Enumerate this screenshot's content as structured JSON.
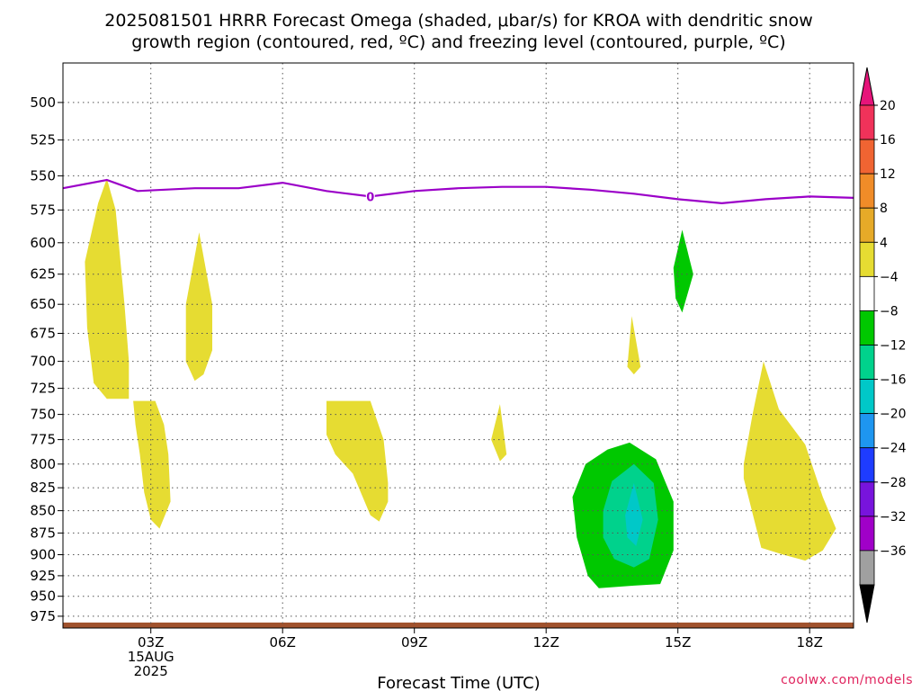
{
  "title_line1": "2025081501 HRRR Forecast Omega (shaded, μbar/s) for KROA with dendritic snow",
  "title_line2": "growth region (contoured, red, ºC) and freezing level (contoured, purple, ºC)",
  "credit": "coolwx.com/models",
  "chart_data": {
    "type": "filled-contour",
    "title": "2025081501 HRRR Forecast Omega (shaded, μbar/s) for KROA with dendritic snow growth region (contoured, red, ºC) and freezing level (contoured, purple, ºC)",
    "xlabel": "Forecast Time (UTC)",
    "ylabel": "",
    "xlim": [
      1,
      19
    ],
    "ylim": [
      990,
      475
    ],
    "y_scale": "log-pressure (inverted)",
    "grid": true,
    "x_ticks": [
      {
        "x": 3,
        "lines": [
          "03Z",
          "15AUG",
          "2025"
        ]
      },
      {
        "x": 6,
        "lines": [
          "06Z"
        ]
      },
      {
        "x": 9,
        "lines": [
          "09Z"
        ]
      },
      {
        "x": 12,
        "lines": [
          "12Z"
        ]
      },
      {
        "x": 15,
        "lines": [
          "15Z"
        ]
      },
      {
        "x": 18,
        "lines": [
          "18Z"
        ]
      }
    ],
    "y_ticks": [
      500,
      525,
      550,
      575,
      600,
      625,
      650,
      675,
      700,
      725,
      750,
      775,
      800,
      825,
      850,
      875,
      900,
      925,
      950,
      975
    ],
    "colorbar": {
      "labels": [
        "20",
        "16",
        "12",
        "8",
        "4",
        "−4",
        "−8",
        "−12",
        "−16",
        "−20",
        "−24",
        "−28",
        "−32",
        "−36"
      ],
      "bands": [
        "#f0325a",
        "#f06432",
        "#f08c28",
        "#e6aa28",
        "#e6dc32",
        "#ffffff",
        "#00c800",
        "#00d28c",
        "#00c8c8",
        "#1e96f0",
        "#1e3cff",
        "#7814dc",
        "#a000c8",
        "#a0a0a0"
      ],
      "top_arrow_color": "#e6147a",
      "bottom_arrow_color": "#000000"
    },
    "freezing_level": {
      "label": "0",
      "color": "#9b00c8",
      "points": [
        [
          1,
          559
        ],
        [
          2,
          553
        ],
        [
          2.7,
          561
        ],
        [
          4,
          559
        ],
        [
          5,
          559
        ],
        [
          6,
          555
        ],
        [
          7,
          561
        ],
        [
          8,
          565
        ],
        [
          9,
          561
        ],
        [
          10,
          559
        ],
        [
          11,
          558
        ],
        [
          12,
          558
        ],
        [
          13,
          560
        ],
        [
          14,
          563
        ],
        [
          15,
          567
        ],
        [
          16,
          570
        ],
        [
          17,
          567
        ],
        [
          18,
          565
        ],
        [
          19,
          566
        ]
      ]
    },
    "omega_regions": [
      {
        "name": "positive-4-to-8",
        "color": "#e6dc32",
        "points": [
          [
            1.5,
            615
          ],
          [
            1.8,
            570
          ],
          [
            2.0,
            552
          ],
          [
            2.2,
            575
          ],
          [
            2.4,
            650
          ],
          [
            2.5,
            700
          ],
          [
            2.5,
            735
          ],
          [
            2.0,
            735
          ],
          [
            1.7,
            720
          ],
          [
            1.55,
            670
          ]
        ]
      },
      {
        "name": "positive-4-to-8",
        "color": "#e6dc32",
        "points": [
          [
            3.8,
            650
          ],
          [
            4.1,
            592
          ],
          [
            4.4,
            650
          ],
          [
            4.4,
            690
          ],
          [
            4.2,
            712
          ],
          [
            4.0,
            718
          ],
          [
            3.8,
            700
          ]
        ]
      },
      {
        "name": "positive-4-to-8",
        "color": "#e6dc32",
        "points": [
          [
            2.6,
            737
          ],
          [
            3.1,
            737
          ],
          [
            3.3,
            760
          ],
          [
            3.4,
            790
          ],
          [
            3.45,
            840
          ],
          [
            3.2,
            870
          ],
          [
            3.0,
            860
          ],
          [
            2.85,
            830
          ],
          [
            2.75,
            790
          ],
          [
            2.65,
            760
          ]
        ]
      },
      {
        "name": "positive-4-to-8",
        "color": "#e6dc32",
        "points": [
          [
            7.0,
            737
          ],
          [
            8.0,
            737
          ],
          [
            8.3,
            775
          ],
          [
            8.4,
            820
          ],
          [
            8.4,
            840
          ],
          [
            8.2,
            862
          ],
          [
            8.0,
            855
          ],
          [
            7.6,
            810
          ],
          [
            7.2,
            790
          ],
          [
            7.0,
            770
          ]
        ]
      },
      {
        "name": "positive-4-to-8",
        "color": "#e6dc32",
        "points": [
          [
            10.75,
            775
          ],
          [
            10.95,
            740
          ],
          [
            11.1,
            790
          ],
          [
            10.95,
            797
          ]
        ]
      },
      {
        "name": "positive-4-to-8",
        "color": "#e6dc32",
        "points": [
          [
            13.85,
            705
          ],
          [
            13.95,
            660
          ],
          [
            14.15,
            705
          ],
          [
            14.0,
            712
          ]
        ]
      },
      {
        "name": "positive-4-to-8",
        "color": "#e6dc32",
        "points": [
          [
            16.5,
            800
          ],
          [
            16.7,
            750
          ],
          [
            16.95,
            700
          ],
          [
            17.3,
            745
          ],
          [
            17.9,
            780
          ],
          [
            18.3,
            835
          ],
          [
            18.6,
            870
          ],
          [
            18.3,
            895
          ],
          [
            17.9,
            907
          ],
          [
            17.4,
            900
          ],
          [
            16.9,
            892
          ],
          [
            16.5,
            815
          ]
        ]
      },
      {
        "name": "negative-4-to-8",
        "color": "#00c800",
        "points": [
          [
            14.9,
            620
          ],
          [
            15.1,
            590
          ],
          [
            15.35,
            625
          ],
          [
            15.1,
            657
          ],
          [
            14.95,
            645
          ]
        ]
      },
      {
        "name": "negative-4-to-8",
        "color": "#00c800",
        "points": [
          [
            12.6,
            835
          ],
          [
            12.9,
            800
          ],
          [
            13.4,
            785
          ],
          [
            13.9,
            778
          ],
          [
            14.5,
            795
          ],
          [
            14.9,
            840
          ],
          [
            14.9,
            895
          ],
          [
            14.6,
            935
          ],
          [
            14.0,
            937
          ],
          [
            13.2,
            940
          ],
          [
            12.95,
            925
          ],
          [
            12.7,
            880
          ]
        ]
      },
      {
        "name": "negative-8-to-12",
        "color": "#00d28c",
        "points": [
          [
            13.3,
            850
          ],
          [
            13.5,
            818
          ],
          [
            14.0,
            800
          ],
          [
            14.45,
            820
          ],
          [
            14.55,
            860
          ],
          [
            14.35,
            905
          ],
          [
            14.0,
            915
          ],
          [
            13.55,
            905
          ],
          [
            13.3,
            880
          ]
        ]
      },
      {
        "name": "negative-12-to-16",
        "color": "#00c8c8",
        "points": [
          [
            13.8,
            855
          ],
          [
            14.0,
            820
          ],
          [
            14.2,
            860
          ],
          [
            14.05,
            890
          ],
          [
            13.85,
            880
          ]
        ]
      }
    ],
    "surface_band": {
      "color": "#a0522d",
      "top": 983,
      "bottom": 990
    }
  }
}
